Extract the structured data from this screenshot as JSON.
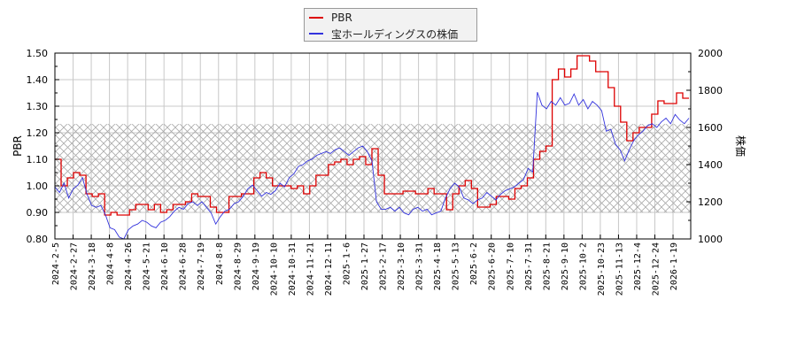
{
  "chart_data": {
    "type": "line",
    "title": "",
    "legend": {
      "position": "top-center",
      "entries": [
        {
          "label": "PBR",
          "color": "#dd0000"
        },
        {
          "label": "宝ホールディングスの株価",
          "color": "#3333dd"
        }
      ]
    },
    "xlabel": "",
    "ylabel_left": "PBR",
    "ylabel_right": "株価",
    "ylim_left": [
      0.8,
      1.5
    ],
    "ylim_right": [
      1000,
      2000
    ],
    "yticks_left": [
      "0.80",
      "0.90",
      "1.00",
      "1.10",
      "1.20",
      "1.30",
      "1.40",
      "1.50"
    ],
    "yticks_right": [
      "1000",
      "1200",
      "1400",
      "1600",
      "1800",
      "2000"
    ],
    "grid": true,
    "shaded_band_left": [
      0.9,
      1.233
    ],
    "x_ticks": [
      "2024-2-5",
      "2024-2-27",
      "2024-3-18",
      "2024-4-8",
      "2024-4-26",
      "2024-5-21",
      "2024-6-10",
      "2024-6-28",
      "2024-7-19",
      "2024-8-8",
      "2024-8-29",
      "2024-9-19",
      "2024-10-10",
      "2024-10-31",
      "2024-11-21",
      "2024-12-11",
      "2025-1-6",
      "2025-1-27",
      "2025-2-17",
      "2025-3-10",
      "2025-3-31",
      "2025-4-18",
      "2025-5-13",
      "2025-6-2",
      "2025-6-20",
      "2025-7-10",
      "2025-7-31",
      "2025-8-21",
      "2025-9-10",
      "2025-10-2",
      "2025-10-23",
      "2025-11-13",
      "2025-12-4",
      "2025-12-24",
      "2026-1-19"
    ],
    "series": [
      {
        "name": "PBR",
        "axis": "left",
        "color": "#dd0000",
        "values": [
          1.1,
          1.0,
          1.03,
          1.05,
          1.04,
          0.97,
          0.96,
          0.97,
          0.89,
          0.9,
          0.89,
          0.89,
          0.91,
          0.93,
          0.93,
          0.91,
          0.93,
          0.9,
          0.91,
          0.93,
          0.93,
          0.94,
          0.97,
          0.96,
          0.96,
          0.92,
          0.9,
          0.9,
          0.96,
          0.96,
          0.97,
          0.97,
          1.03,
          1.05,
          1.03,
          1.0,
          1.0,
          1.0,
          0.99,
          1.0,
          0.97,
          1.0,
          1.04,
          1.04,
          1.08,
          1.09,
          1.1,
          1.08,
          1.1,
          1.11,
          1.08,
          1.14,
          1.04,
          0.97,
          0.97,
          0.97,
          0.98,
          0.98,
          0.97,
          0.97,
          0.99,
          0.97,
          0.97,
          0.91,
          0.97,
          1.0,
          1.02,
          0.99,
          0.92,
          0.92,
          0.93,
          0.96,
          0.96,
          0.95,
          0.99,
          1.0,
          1.03,
          1.1,
          1.13,
          1.15,
          1.4,
          1.44,
          1.41,
          1.44,
          1.49,
          1.49,
          1.47,
          1.43,
          1.43,
          1.37,
          1.3,
          1.24,
          1.17,
          1.2,
          1.22,
          1.22,
          1.27,
          1.32,
          1.31,
          1.31,
          1.35,
          1.33,
          1.33
        ]
      },
      {
        "name": "宝ホールディングスの株価",
        "axis": "right",
        "color": "#3333dd",
        "values": [
          1280,
          1250,
          1300,
          1220,
          1270,
          1290,
          1330,
          1240,
          1180,
          1170,
          1180,
          1130,
          1060,
          1050,
          1010,
          1000,
          1050,
          1070,
          1080,
          1100,
          1090,
          1070,
          1060,
          1090,
          1100,
          1120,
          1150,
          1170,
          1160,
          1190,
          1200,
          1180,
          1200,
          1170,
          1140,
          1080,
          1120,
          1150,
          1160,
          1190,
          1200,
          1230,
          1270,
          1290,
          1260,
          1230,
          1250,
          1240,
          1260,
          1300,
          1280,
          1330,
          1350,
          1390,
          1400,
          1420,
          1430,
          1450,
          1460,
          1470,
          1460,
          1480,
          1490,
          1470,
          1450,
          1470,
          1490,
          1500,
          1470,
          1420,
          1200,
          1160,
          1160,
          1170,
          1150,
          1170,
          1140,
          1130,
          1160,
          1170,
          1150,
          1160,
          1130,
          1140,
          1150,
          1220,
          1270,
          1300,
          1280,
          1220,
          1210,
          1190,
          1210,
          1220,
          1250,
          1230,
          1210,
          1240,
          1260,
          1270,
          1280,
          1300,
          1320,
          1380,
          1360,
          1790,
          1720,
          1700,
          1740,
          1720,
          1760,
          1720,
          1730,
          1780,
          1720,
          1750,
          1700,
          1740,
          1720,
          1690,
          1580,
          1590,
          1510,
          1480,
          1420,
          1480,
          1530,
          1560,
          1580,
          1610,
          1620,
          1600,
          1630,
          1650,
          1620,
          1670,
          1640,
          1620,
          1650
        ]
      }
    ]
  }
}
